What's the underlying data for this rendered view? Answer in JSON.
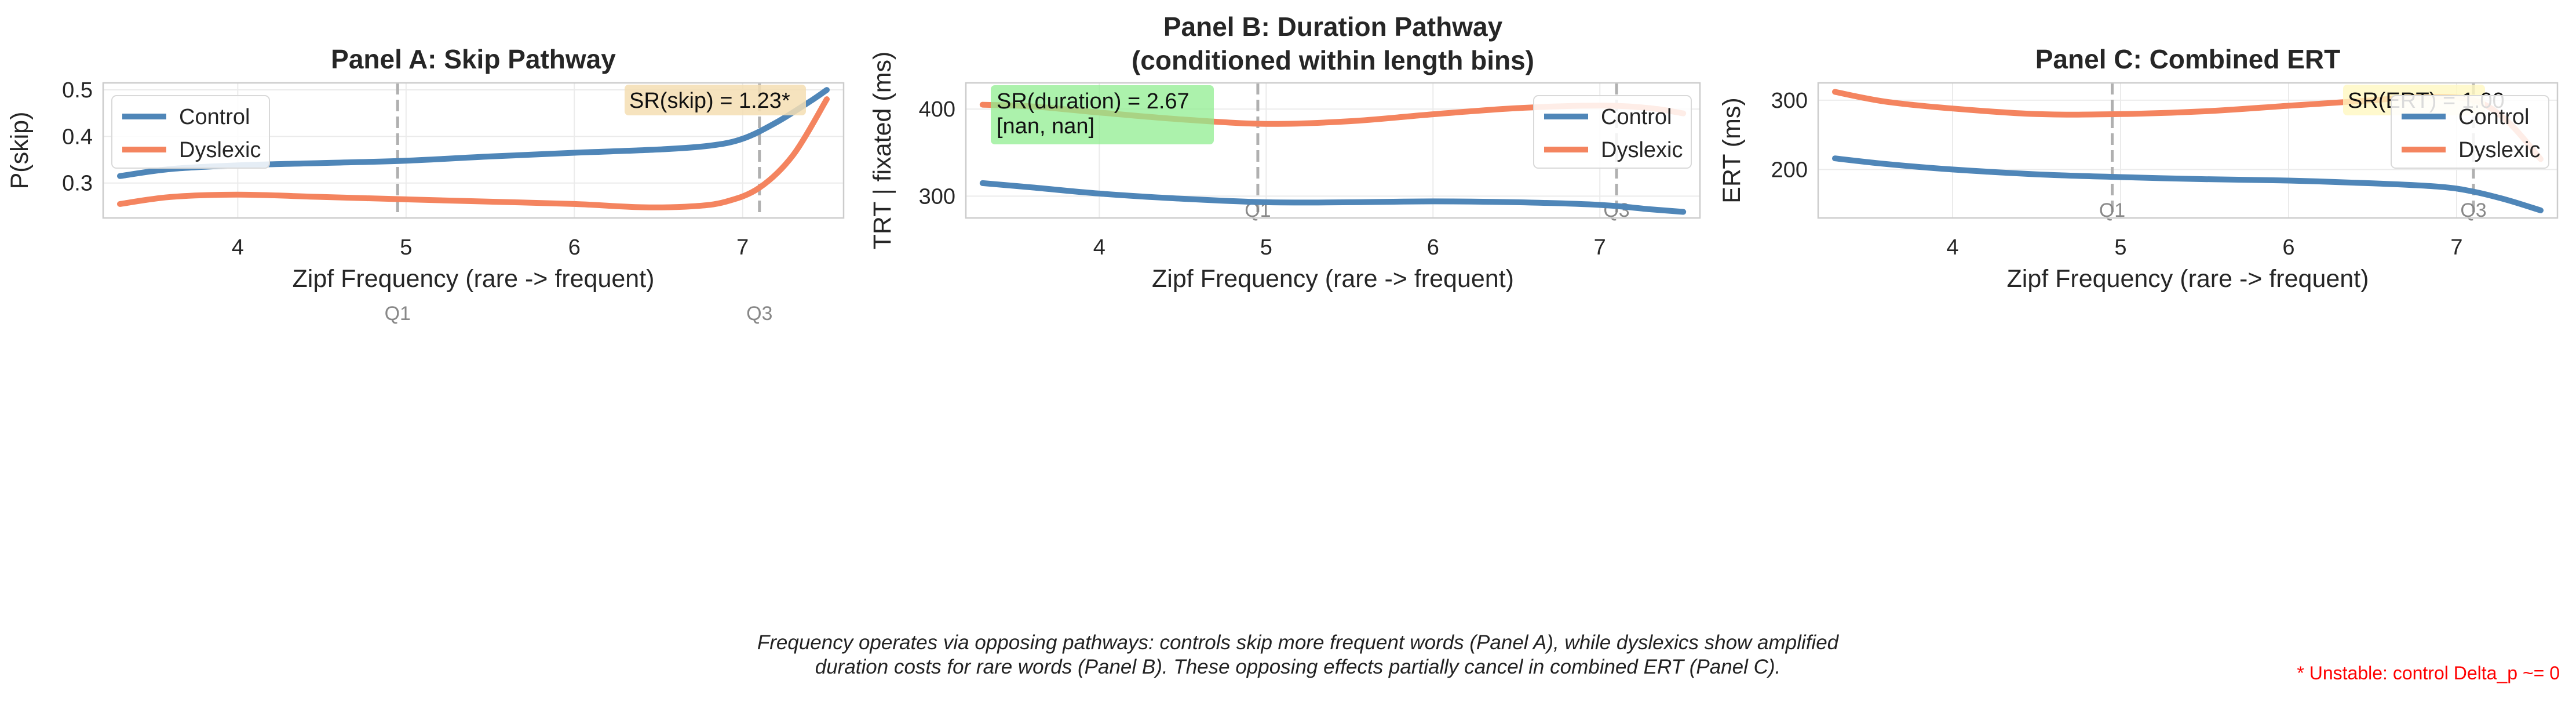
{
  "figure": {
    "caption_line1": "Frequency operates via opposing pathways: controls skip more frequent words (Panel A), while dyslexics show amplified",
    "caption_line2": "duration costs for rare words (Panel B). These opposing effects partially cancel in combined ERT (Panel C).",
    "footnote": "* Unstable: control Delta_p ~= 0"
  },
  "colors": {
    "Control": "#4f86b8",
    "Dyslexic": "#f4845f",
    "quartile_line": "#b0b0b0"
  },
  "chart_data": [
    {
      "type": "line",
      "title": "Panel A: Skip Pathway",
      "xlabel": "Zipf Frequency (rare -> frequent)",
      "ylabel": "P(skip)",
      "xlim": [
        3.2,
        7.6
      ],
      "ylim": [
        0.225,
        0.515
      ],
      "xticks": [
        4,
        5,
        6,
        7
      ],
      "yticks": [
        0.3,
        0.4,
        0.5
      ],
      "ytick_labels": [
        "0.3",
        "0.4",
        "0.5"
      ],
      "grid": true,
      "legend": "upper left",
      "quartiles": [
        {
          "label": "Q1",
          "x": 4.95
        },
        {
          "label": "Q3",
          "x": 7.1
        }
      ],
      "quartile_label_position": "below axis",
      "annotation": {
        "text": "SR(skip) = 1.23*",
        "position": "top-right",
        "bg": "#f5deb3"
      },
      "series": [
        {
          "name": "Control",
          "x": [
            3.3,
            3.6,
            4.0,
            4.5,
            5.0,
            5.5,
            6.0,
            6.5,
            6.8,
            7.0,
            7.2,
            7.4,
            7.5
          ],
          "y": [
            0.315,
            0.33,
            0.338,
            0.343,
            0.348,
            0.357,
            0.365,
            0.372,
            0.38,
            0.395,
            0.43,
            0.475,
            0.5
          ]
        },
        {
          "name": "Dyslexic",
          "x": [
            3.3,
            3.6,
            4.0,
            4.5,
            5.0,
            5.5,
            6.0,
            6.4,
            6.7,
            6.9,
            7.1,
            7.3,
            7.5
          ],
          "y": [
            0.255,
            0.27,
            0.275,
            0.27,
            0.265,
            0.26,
            0.255,
            0.248,
            0.25,
            0.26,
            0.29,
            0.36,
            0.48
          ]
        }
      ]
    },
    {
      "type": "line",
      "title": "Panel B: Duration Pathway",
      "subtitle": "(conditioned within length bins)",
      "xlabel": "Zipf Frequency (rare -> frequent)",
      "ylabel": "TRT | fixated (ms)",
      "xlim": [
        3.2,
        7.6
      ],
      "ylim": [
        275,
        430
      ],
      "xticks": [
        4,
        5,
        6,
        7
      ],
      "yticks": [
        300,
        400
      ],
      "ytick_labels": [
        "300",
        "400"
      ],
      "grid": true,
      "legend": "upper right",
      "quartiles": [
        {
          "label": "Q1",
          "x": 4.95
        },
        {
          "label": "Q3",
          "x": 7.1
        }
      ],
      "quartile_label_position": "inside bottom",
      "annotation": {
        "text": "SR(duration) = 2.67",
        "text2": "[nan, nan]",
        "position": "top-left",
        "bg": "#90ee90"
      },
      "series": [
        {
          "name": "Control",
          "x": [
            3.3,
            3.6,
            4.0,
            4.5,
            5.0,
            5.5,
            6.0,
            6.5,
            7.0,
            7.3,
            7.5
          ],
          "y": [
            315,
            310,
            303,
            297,
            293,
            293,
            294,
            293,
            290,
            285,
            282
          ]
        },
        {
          "name": "Dyslexic",
          "x": [
            3.3,
            3.6,
            4.0,
            4.5,
            5.0,
            5.5,
            6.0,
            6.5,
            7.0,
            7.3,
            7.5
          ],
          "y": [
            405,
            403,
            396,
            388,
            383,
            386,
            394,
            401,
            404,
            401,
            395
          ]
        }
      ]
    },
    {
      "type": "line",
      "title": "Panel C: Combined ERT",
      "xlabel": "Zipf Frequency (rare -> frequent)",
      "ylabel": "ERT (ms)",
      "xlim": [
        3.2,
        7.6
      ],
      "ylim": [
        130,
        325
      ],
      "xticks": [
        4,
        5,
        6,
        7
      ],
      "yticks": [
        200,
        300
      ],
      "ytick_labels": [
        "200",
        "300"
      ],
      "grid": true,
      "legend": "upper right",
      "quartiles": [
        {
          "label": "Q1",
          "x": 4.95
        },
        {
          "label": "Q3",
          "x": 7.1
        }
      ],
      "quartile_label_position": "inside bottom",
      "annotation": {
        "text": "SR(ERT) = 1.00",
        "position": "top-right",
        "bg": "#fff8c0",
        "partially_hidden": true
      },
      "series": [
        {
          "name": "Control",
          "x": [
            3.3,
            3.6,
            4.0,
            4.5,
            5.0,
            5.5,
            6.0,
            6.5,
            6.9,
            7.1,
            7.3,
            7.5
          ],
          "y": [
            216,
            208,
            200,
            193,
            189,
            186,
            184,
            180,
            175,
            168,
            156,
            141
          ]
        },
        {
          "name": "Dyslexic",
          "x": [
            3.3,
            3.6,
            4.0,
            4.5,
            5.0,
            5.5,
            6.0,
            6.5,
            6.8,
            7.1,
            7.3,
            7.5
          ],
          "y": [
            312,
            298,
            288,
            280,
            280,
            284,
            292,
            300,
            305,
            300,
            270,
            215
          ]
        }
      ]
    }
  ]
}
